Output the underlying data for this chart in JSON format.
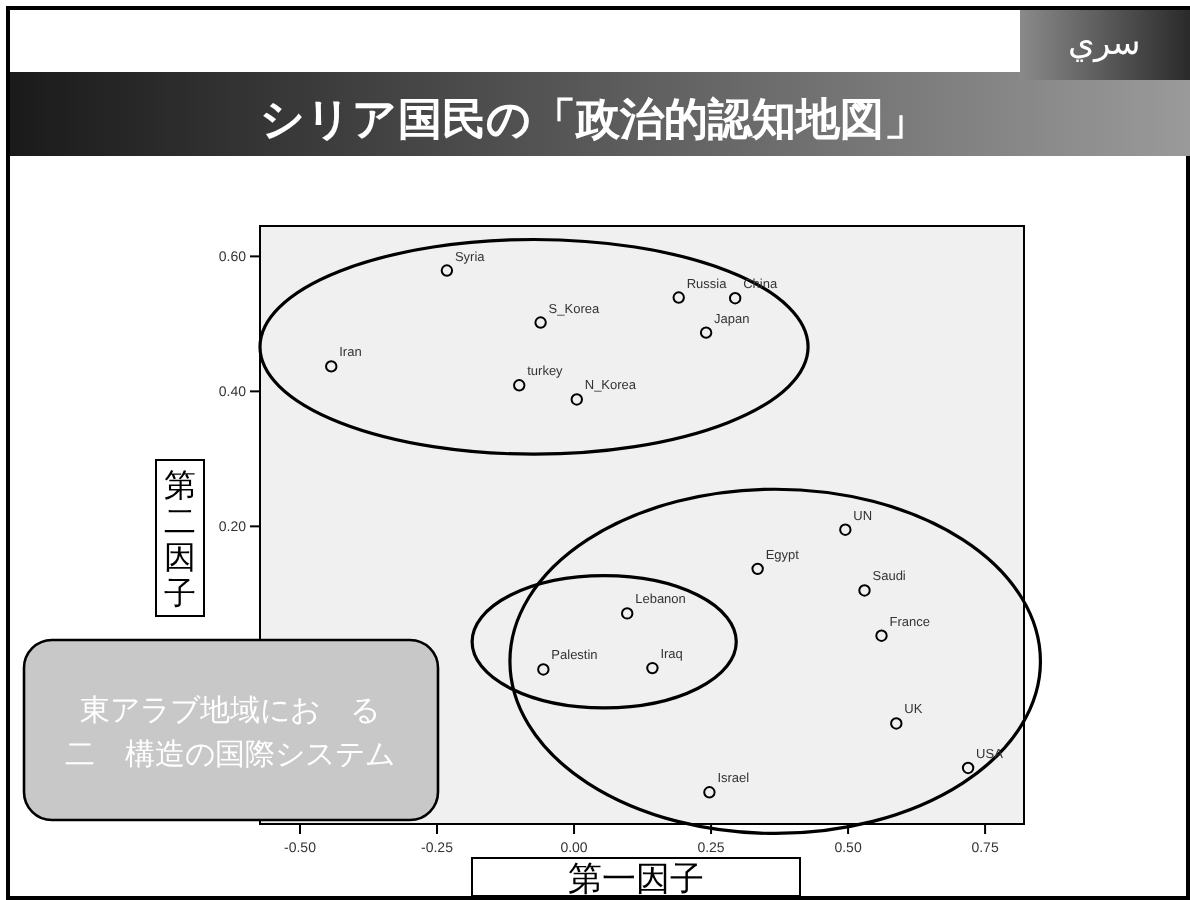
{
  "chart_data": {
    "type": "scatter",
    "title": "シリア国民の「政治的認知地図」",
    "xlabel": "第一因子",
    "ylabel": "第二因子",
    "xlim": [
      -0.573,
      0.821
    ],
    "ylim": [
      -0.241,
      0.645
    ],
    "xticks": [
      {
        "value": -0.5,
        "label": "-0.50"
      },
      {
        "value": -0.25,
        "label": "-0.25"
      },
      {
        "value": 0,
        "label": "0.00"
      },
      {
        "value": 0.25,
        "label": "0.25"
      },
      {
        "value": 0.5,
        "label": "0.50"
      },
      {
        "value": 0.75,
        "label": "0.75"
      }
    ],
    "yticks": [
      {
        "value": 0.2,
        "label": "0.20"
      },
      {
        "value": 0.4,
        "label": "0.40"
      },
      {
        "value": 0.6,
        "label": "0.60"
      }
    ],
    "marker": "circle",
    "grid": false,
    "series": [
      {
        "color": "#000000",
        "x": [
          -0.232,
          -0.443,
          -0.061,
          -0.1,
          0.005,
          0.191,
          0.294,
          0.241,
          0.495,
          0.335,
          0.53,
          0.097,
          0.561,
          -0.056,
          0.143,
          0.588,
          0.719,
          0.247
        ],
        "values": [
          0.579,
          0.437,
          0.502,
          0.409,
          0.388,
          0.539,
          0.538,
          0.487,
          0.195,
          0.137,
          0.105,
          0.071,
          0.038,
          -0.012,
          -0.01,
          -0.092,
          -0.158,
          -0.194
        ]
      }
    ],
    "annotations": [
      "سري",
      "東アラブ地域にお　る",
      "二　構造の国際システム",
      {
        "text": "Syria",
        "x": -0.232,
        "y": 0.579
      },
      {
        "text": "Iran",
        "x": -0.443,
        "y": 0.437
      },
      {
        "text": "S_Korea",
        "x": -0.061,
        "y": 0.502
      },
      {
        "text": "turkey",
        "x": -0.1,
        "y": 0.409
      },
      {
        "text": "N_Korea",
        "x": 0.005,
        "y": 0.388
      },
      {
        "text": "Russia",
        "x": 0.191,
        "y": 0.539
      },
      {
        "text": "China",
        "x": 0.294,
        "y": 0.538
      },
      {
        "text": "Japan",
        "x": 0.241,
        "y": 0.487
      },
      {
        "text": "UN",
        "x": 0.495,
        "y": 0.195
      },
      {
        "text": "Egypt",
        "x": 0.335,
        "y": 0.137
      },
      {
        "text": "Saudi",
        "x": 0.53,
        "y": 0.105
      },
      {
        "text": "Lebanon",
        "x": 0.097,
        "y": 0.071
      },
      {
        "text": "France",
        "x": 0.561,
        "y": 0.038
      },
      {
        "text": "Palestin",
        "x": -0.056,
        "y": -0.012
      },
      {
        "text": "Iraq",
        "x": 0.143,
        "y": -0.01
      },
      {
        "text": "UK",
        "x": 0.588,
        "y": -0.092
      },
      {
        "text": "USA",
        "x": 0.719,
        "y": -0.158
      },
      {
        "text": "Israel",
        "x": 0.247,
        "y": -0.194
      }
    ]
  }
}
